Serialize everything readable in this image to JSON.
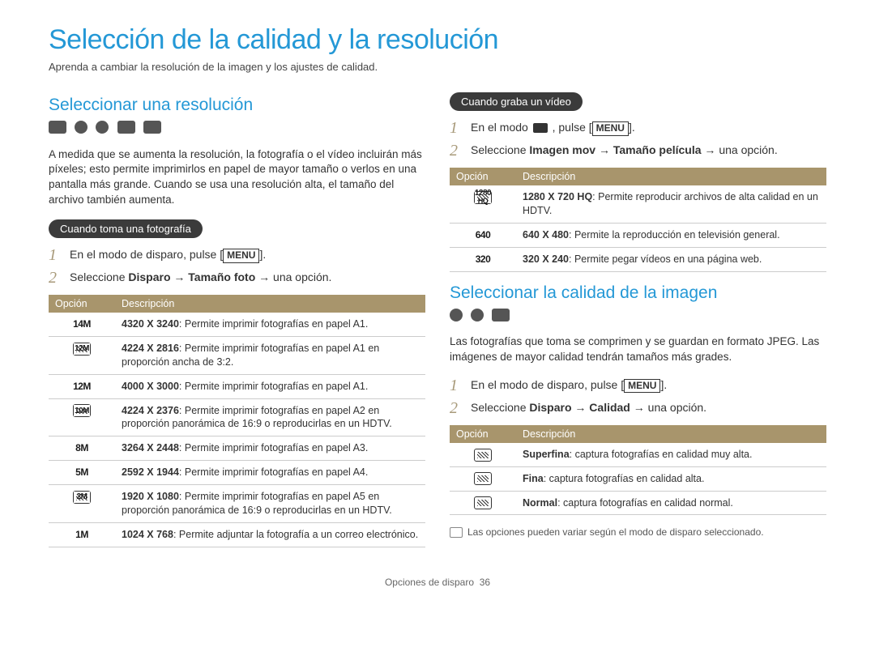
{
  "page": {
    "title": "Selección de la calidad y la resolución",
    "subtitle": "Aprenda a cambiar la resolución de la imagen y los ajustes de calidad.",
    "footer_label": "Opciones de disparo",
    "footer_page": "36"
  },
  "colors": {
    "accent": "#2498d6",
    "pill_bg": "#3b3b3b",
    "table_header_bg": "#a8956c",
    "step_num": "#a89a7a",
    "row_border": "#cccccc",
    "text": "#333333"
  },
  "left": {
    "section_title": "Seleccionar una resolución",
    "intro": "A medida que se aumenta la resolución, la fotografía o el vídeo incluirán más píxeles; esto permite imprimirlos en papel de mayor tamaño o verlos en una pantalla más grande. Cuando se usa una resolución alta, el tamaño del archivo también aumenta.",
    "photo_pill": "Cuando toma una fotografía",
    "photo_steps": [
      {
        "num": "1",
        "pre": "En el modo de disparo, pulse [",
        "key": "MENU",
        "post": "]."
      },
      {
        "num": "2",
        "pre": "Seleccione ",
        "bold1": "Disparo",
        "arrow1": " → ",
        "bold2": "Tamaño foto",
        "arrow2": " → ",
        "post": "una opción."
      }
    ],
    "photo_table": {
      "headers": {
        "opcion": "Opción",
        "desc": "Descripción"
      },
      "rows": [
        {
          "icon": "14M",
          "res": "4320 X 3240",
          "desc": ": Permite imprimir fotografías en papel A1."
        },
        {
          "icon": "12Mw",
          "res": "4224 X 2816",
          "desc": ": Permite imprimir fotografías en papel A1 en proporción ancha de 3:2."
        },
        {
          "icon": "12M",
          "res": "4000 X 3000",
          "desc": ": Permite imprimir fotografías en papel A1."
        },
        {
          "icon": "10Mw",
          "res": "4224 X 2376",
          "desc": ": Permite imprimir fotografías en papel A2 en proporción panorámica de 16:9 o reproducirlas en un HDTV."
        },
        {
          "icon": "8M",
          "res": "3264 X 2448",
          "desc": ": Permite imprimir fotografías en papel A3."
        },
        {
          "icon": "5M",
          "res": "2592 X 1944",
          "desc": ": Permite imprimir fotografías en papel A4."
        },
        {
          "icon": "2Mw",
          "res": "1920 X 1080",
          "desc": ": Permite imprimir fotografías en papel A5 en proporción panorámica de 16:9 o reproducirlas en un HDTV."
        },
        {
          "icon": "1M",
          "res": "1024 X 768",
          "desc": ": Permite adjuntar la fotografía a un correo electrónico."
        }
      ]
    }
  },
  "right": {
    "video_pill": "Cuando graba un vídeo",
    "video_steps": [
      {
        "num": "1",
        "pre": "En el modo ",
        "icon": true,
        "mid": " , pulse [",
        "key": "MENU",
        "post": "]."
      },
      {
        "num": "2",
        "pre": "Seleccione ",
        "bold1": "Imagen mov",
        "arrow1": " → ",
        "bold2": "Tamaño película",
        "arrow2": " → ",
        "post": "una opción."
      }
    ],
    "video_table": {
      "headers": {
        "opcion": "Opción",
        "desc": "Descripción"
      },
      "rows": [
        {
          "icon": "1280 HQ",
          "res": "1280 X 720 HQ",
          "desc": ": Permite reproducir archivos de alta calidad en un HDTV."
        },
        {
          "icon": "640",
          "res": "640 X 480",
          "desc": ": Permite la reproducción en televisión general."
        },
        {
          "icon": "320",
          "res": "320 X 240",
          "desc": ": Permite pegar vídeos en una página web."
        }
      ]
    },
    "quality_title": "Seleccionar la calidad de la imagen",
    "quality_intro": "Las fotografías que toma se comprimen y se guardan en formato JPEG. Las imágenes de mayor calidad tendrán tamaños más grades.",
    "quality_steps": [
      {
        "num": "1",
        "pre": "En el modo de disparo, pulse [",
        "key": "MENU",
        "post": "]."
      },
      {
        "num": "2",
        "pre": "Seleccione ",
        "bold1": "Disparo",
        "arrow1": " → ",
        "bold2": "Calidad",
        "arrow2": " → ",
        "post": "una opción."
      }
    ],
    "quality_table": {
      "headers": {
        "opcion": "Opción",
        "desc": "Descripción"
      },
      "rows": [
        {
          "icon": "SF",
          "res": "Superfina",
          "desc": ": captura fotografías en calidad muy alta."
        },
        {
          "icon": "F",
          "res": "Fina",
          "desc": ": captura fotografías en calidad alta."
        },
        {
          "icon": "N",
          "res": "Normal",
          "desc": ": captura fotografías en calidad normal."
        }
      ]
    },
    "footnote": "Las opciones pueden variar según el modo de disparo seleccionado."
  }
}
